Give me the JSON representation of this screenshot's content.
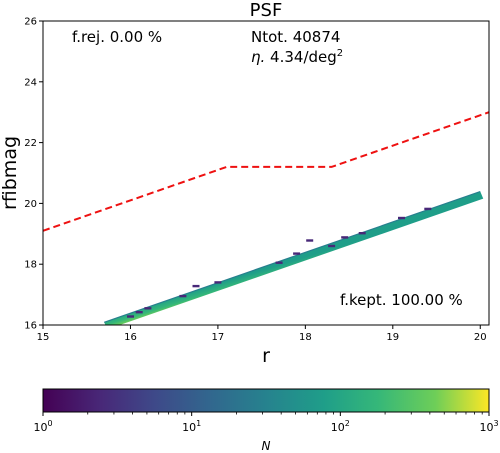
{
  "chart_data": {
    "type": "heatmap",
    "title": "PSF",
    "xlabel": "r",
    "ylabel": "rfibmag",
    "xlim": [
      15,
      20.1
    ],
    "ylim": [
      16,
      26
    ],
    "xticks": [
      "15",
      "16",
      "17",
      "18",
      "19",
      "20"
    ],
    "yticks": [
      "16",
      "18",
      "20",
      "22",
      "24",
      "26"
    ],
    "grid": false,
    "annotations": {
      "frej": "f.rej. 0.00 %",
      "ntot": "Ntot. 40874",
      "eta_symbol": "η.",
      "eta_value": " 4.34/deg",
      "eta_exp": "2",
      "fkept": "f.kept. 100.00 %"
    },
    "cut_line": {
      "style": "dashed",
      "color": "#ee1111",
      "points": [
        [
          15,
          19.1
        ],
        [
          17.1,
          21.2
        ],
        [
          18.3,
          21.2
        ],
        [
          20.1,
          23.0
        ]
      ]
    },
    "locus": {
      "start": [
        15.7,
        16.0
      ],
      "end": [
        20.0,
        20.3
      ],
      "width_mag": 0.09
    },
    "outliers": [
      {
        "r": 16.0,
        "y": 16.28
      },
      {
        "r": 16.1,
        "y": 16.42
      },
      {
        "r": 16.2,
        "y": 16.55
      },
      {
        "r": 16.6,
        "y": 16.95
      },
      {
        "r": 16.75,
        "y": 17.28
      },
      {
        "r": 17.0,
        "y": 17.4
      },
      {
        "r": 17.7,
        "y": 18.05
      },
      {
        "r": 17.9,
        "y": 18.35
      },
      {
        "r": 18.05,
        "y": 18.78
      },
      {
        "r": 18.3,
        "y": 18.6
      },
      {
        "r": 18.45,
        "y": 18.88
      },
      {
        "r": 18.65,
        "y": 19.02
      },
      {
        "r": 19.1,
        "y": 19.52
      },
      {
        "r": 19.4,
        "y": 19.82
      }
    ],
    "colorbar": {
      "label": "N",
      "scale": "log",
      "range": [
        1,
        1000
      ],
      "colormap": "viridis",
      "ticks": [
        {
          "value": 1,
          "base": "10",
          "exp": "0"
        },
        {
          "value": 10,
          "base": "10",
          "exp": "1"
        },
        {
          "value": 100,
          "base": "10",
          "exp": "2"
        },
        {
          "value": 1000,
          "base": "10",
          "exp": "3"
        }
      ]
    }
  }
}
